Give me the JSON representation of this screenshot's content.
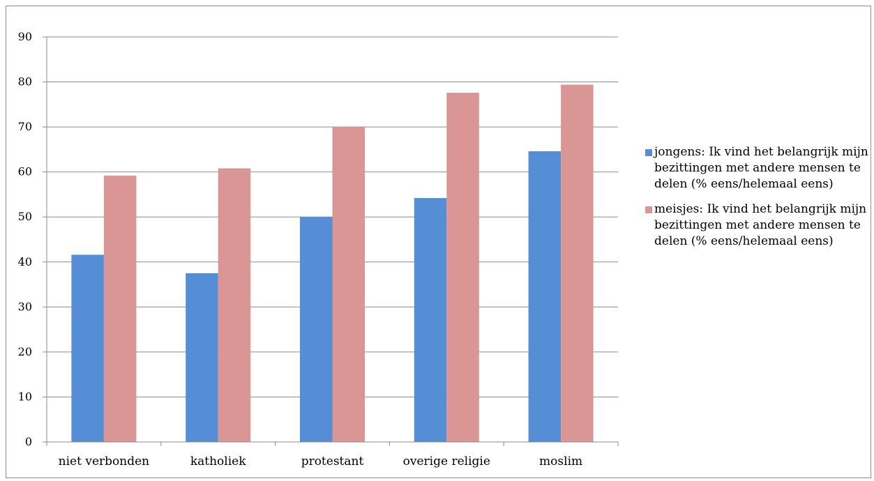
{
  "chart_data": {
    "type": "bar",
    "title": "",
    "xlabel": "",
    "ylabel": "",
    "categories": [
      "niet verbonden",
      "katholiek",
      "protestant",
      "overige religie",
      "moslim"
    ],
    "series": [
      {
        "name": "jongens: Ik vind het belangrijk mijn bezittingen met andere mensen te delen (% eens/helemaal eens)",
        "color": "#558ed5",
        "values": [
          41.6,
          37.5,
          50.0,
          54.2,
          64.6
        ]
      },
      {
        "name": "meisjes: Ik vind het belangrijk mijn bezittingen met andere mensen te delen (% eens/helemaal eens)",
        "color": "#d99694",
        "values": [
          59.2,
          60.8,
          70.0,
          77.6,
          79.4
        ]
      }
    ],
    "ylim": [
      0,
      90
    ],
    "yticks": [
      "0",
      "10",
      "20",
      "30",
      "40",
      "50",
      "60",
      "70",
      "80",
      "90"
    ],
    "grid": true,
    "legend": "right"
  }
}
